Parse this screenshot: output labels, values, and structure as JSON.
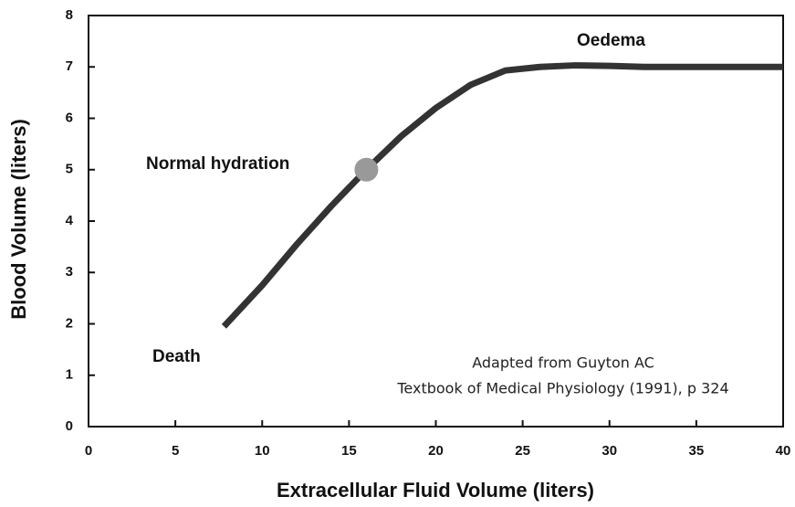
{
  "chart_data": {
    "type": "line",
    "xlabel": "Extracellular Fluid Volume (liters)",
    "ylabel": "Blood Volume (liters)",
    "x": [
      7.8,
      10,
      12,
      14,
      16,
      18,
      20,
      22,
      24,
      26,
      28,
      30,
      32,
      34,
      36,
      38,
      40
    ],
    "values": [
      1.95,
      2.75,
      3.55,
      4.3,
      5.0,
      5.65,
      6.2,
      6.65,
      6.93,
      7.0,
      7.03,
      7.02,
      7.0,
      7.0,
      7.0,
      7.0,
      7.0
    ],
    "color": "#333333",
    "highlight": {
      "x": 16,
      "y": 5,
      "color": "#999999"
    },
    "xlim": [
      0,
      40
    ],
    "xticks": [
      0,
      5,
      10,
      15,
      20,
      25,
      30,
      35,
      40
    ],
    "ylim": [
      0,
      8
    ],
    "yticks": [
      0,
      1,
      2,
      3,
      4,
      5,
      6,
      7,
      8
    ],
    "grid": false,
    "annotations": [
      "Oedema",
      "Normal hydration",
      "Death",
      "Adapted from Guyton AC",
      "Textbook of Medical Physiology (1991), p 324"
    ]
  }
}
